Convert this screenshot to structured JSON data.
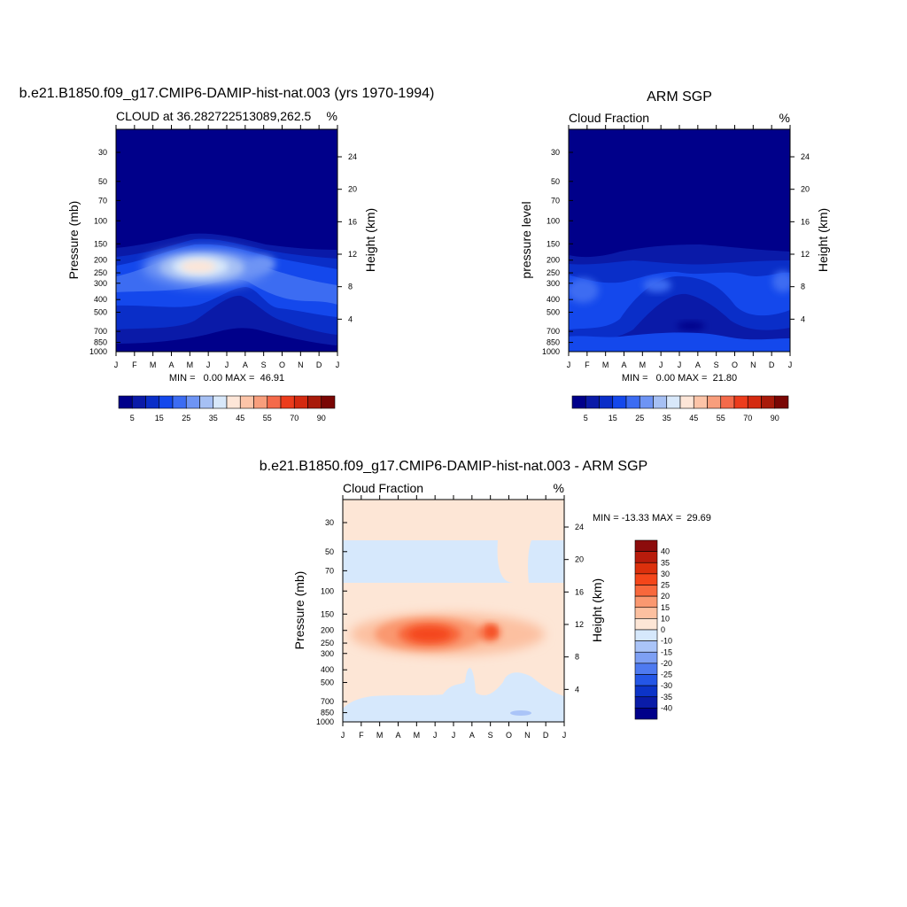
{
  "chart_data": [
    {
      "type": "heatmap",
      "title": "b.e21.B1850.f09_g17.CMIP6-DAMIP-hist-nat.003 (yrs 1970-1994)",
      "subtitle_left": "CLOUD at 36.282722513089,262.5",
      "subtitle_right": "%",
      "xlabel": "",
      "ylabel": "Pressure (mb)",
      "ylabel_right": "Height (km)",
      "x_ticks": [
        "J",
        "F",
        "M",
        "A",
        "M",
        "J",
        "J",
        "A",
        "S",
        "O",
        "N",
        "D",
        "J"
      ],
      "y_ticks": [
        30,
        50,
        70,
        100,
        150,
        200,
        250,
        300,
        400,
        500,
        700,
        850,
        1000
      ],
      "y_scale": "log",
      "ylim": [
        1000,
        20
      ],
      "height_ticks": [
        24,
        20,
        16,
        12,
        8,
        4
      ],
      "stats": "MIN =   0.00 MAX =  46.91",
      "colorbar": {
        "labels": [
          "5",
          "15",
          "25",
          "35",
          "45",
          "55",
          "70",
          "90"
        ],
        "colors": [
          "#00008a",
          "#0a1aa8",
          "#0a2ec8",
          "#1448ec",
          "#3c6cf2",
          "#6e94f4",
          "#a6c0f4",
          "#d8e8fa",
          "#fde6d8",
          "#fcc4a8",
          "#f89e7c",
          "#f46a4a",
          "#ec3c1c",
          "#d42a10",
          "#a81a0a",
          "#7a0604"
        ]
      },
      "fields": [
        {
          "name": "cloud_blob_peak",
          "value": 46.91,
          "month": 4.5,
          "pressure": 230
        }
      ]
    },
    {
      "type": "heatmap",
      "title": "ARM SGP",
      "subtitle_left": "Cloud Fraction",
      "subtitle_right": "%",
      "xlabel": "",
      "ylabel": "pressure level",
      "ylabel_right": "Height (km)",
      "x_ticks": [
        "J",
        "F",
        "M",
        "A",
        "M",
        "J",
        "J",
        "A",
        "S",
        "O",
        "N",
        "D",
        "J"
      ],
      "y_ticks": [
        30,
        50,
        70,
        100,
        150,
        200,
        250,
        300,
        400,
        500,
        700,
        850,
        1000
      ],
      "y_scale": "log",
      "ylim": [
        1000,
        20
      ],
      "height_ticks": [
        24,
        20,
        16,
        12,
        8,
        4
      ],
      "stats": "MIN =   0.00 MAX =  21.80",
      "colorbar": {
        "labels": [
          "5",
          "15",
          "25",
          "35",
          "45",
          "55",
          "70",
          "90"
        ],
        "colors": [
          "#00008a",
          "#0a1aa8",
          "#0a2ec8",
          "#1448ec",
          "#3c6cf2",
          "#6e94f4",
          "#a6c0f4",
          "#d8e8fa",
          "#fde6d8",
          "#fcc4a8",
          "#f89e7c",
          "#f46a4a",
          "#ec3c1c",
          "#d42a10",
          "#a81a0a",
          "#7a0604"
        ]
      }
    },
    {
      "type": "heatmap",
      "title": "b.e21.B1850.f09_g17.CMIP6-DAMIP-hist-nat.003 - ARM SGP",
      "subtitle_left": "Cloud Fraction",
      "subtitle_right": "%",
      "xlabel": "",
      "ylabel": "Pressure (mb)",
      "ylabel_right": "Height (km)",
      "x_ticks": [
        "J",
        "F",
        "M",
        "A",
        "M",
        "J",
        "J",
        "A",
        "S",
        "O",
        "N",
        "D",
        "J"
      ],
      "y_ticks": [
        30,
        50,
        70,
        100,
        150,
        200,
        250,
        300,
        400,
        500,
        700,
        850,
        1000
      ],
      "y_scale": "log",
      "ylim": [
        1000,
        20
      ],
      "height_ticks": [
        24,
        20,
        16,
        12,
        8,
        4
      ],
      "stats": "MIN = -13.33 MAX =  29.69",
      "colorbar": {
        "labels": [
          "40",
          "35",
          "30",
          "25",
          "20",
          "15",
          "10",
          "0",
          "-10",
          "-15",
          "-20",
          "-25",
          "-30",
          "-35",
          "-40"
        ],
        "colors": [
          "#8c0c0c",
          "#b81c0c",
          "#dc300c",
          "#f4461a",
          "#f8683c",
          "#fa9870",
          "#fcc0a0",
          "#fde6d6",
          "#d6e8fc",
          "#aac4f8",
          "#7ea0f4",
          "#4e7af0",
          "#2456e6",
          "#0c34c8",
          "#0a1ca8",
          "#00008a"
        ]
      }
    }
  ]
}
